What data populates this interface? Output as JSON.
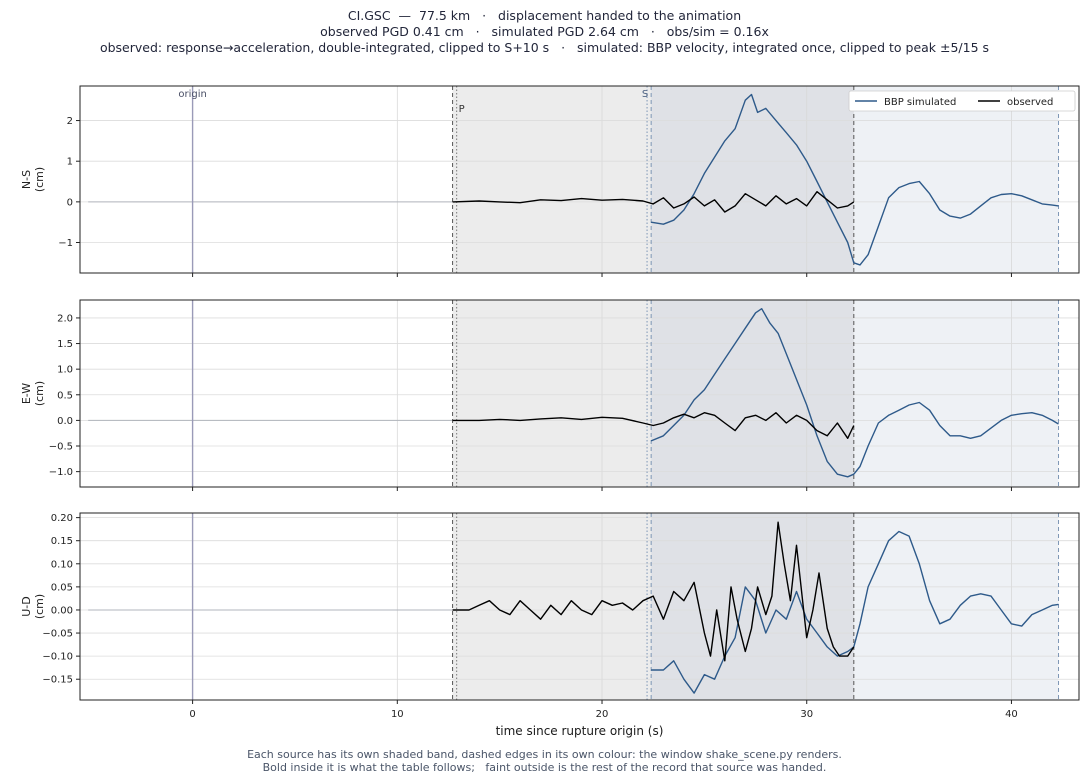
{
  "header": {
    "line1": "CI.GSC  —  77.5 km   ·   displacement handed to the animation",
    "line2": "observed PGD 0.41 cm   ·   simulated PGD 2.64 cm   ·   obs/sim = 0.16x",
    "line3": "observed: response→acceleration, double-integrated, clipped to S+10 s   ·   simulated: BBP velocity, integrated once, clipped to peak ±5/15 s"
  },
  "footer": {
    "line1": "Each source has its own shaded band, dashed edges in its own colour: the window shake_scene.py renders.",
    "line2": "Bold inside it is what the table follows;   faint outside is the rest of the record that source was handed."
  },
  "colors": {
    "simulated": "#2e5a8a",
    "observed": "#000000",
    "faint": "#b0b4bc",
    "origin_line": "#9a9ab8",
    "obs_band": "#ececec",
    "overlap_band": "#dfe1e6",
    "sim_band": "#eef1f5",
    "obs_edge": "#555555",
    "sim_edge": "#7d95b5"
  },
  "chart_data": {
    "type": "line",
    "xlabel": "time since rupture origin (s)",
    "xlim": [
      -5.5,
      43.3
    ],
    "xticks": [
      0,
      10,
      20,
      30,
      40
    ],
    "markers": {
      "origin": 0,
      "P": 12.9,
      "S": 22.2
    },
    "marker_labels": {
      "origin": "origin",
      "P": "P",
      "S": "S"
    },
    "windows": {
      "observed": [
        12.7,
        32.3
      ],
      "simulated": [
        22.4,
        42.3
      ]
    },
    "legend": {
      "position": "top-right",
      "entries": [
        "BBP simulated",
        "observed"
      ]
    },
    "panels": [
      {
        "ylabel": "N-S\n(cm)",
        "ylim": [
          -1.75,
          2.85
        ],
        "yticks": [
          -1,
          0,
          1,
          2
        ],
        "ytick_labels": [
          "−1",
          "0",
          "1",
          "2"
        ],
        "series": [
          {
            "name": "BBP simulated",
            "x": [
              22.4,
              23.0,
              23.5,
              24.0,
              24.5,
              25.0,
              25.5,
              26.0,
              26.5,
              27.0,
              27.3,
              27.6,
              28.0,
              28.5,
              29.0,
              29.5,
              30.0,
              30.5,
              31.0,
              31.5,
              32.0,
              32.3,
              32.6,
              33.0,
              33.5,
              34.0,
              34.5,
              35.0,
              35.5,
              36.0,
              36.5,
              37.0,
              37.5,
              38.0,
              38.5,
              39.0,
              39.5,
              40.0,
              40.5,
              41.0,
              41.5,
              42.0,
              42.3
            ],
            "y": [
              -0.5,
              -0.55,
              -0.45,
              -0.2,
              0.2,
              0.7,
              1.1,
              1.5,
              1.8,
              2.5,
              2.64,
              2.2,
              2.3,
              2.0,
              1.7,
              1.4,
              1.0,
              0.5,
              0.0,
              -0.5,
              -1.0,
              -1.5,
              -1.55,
              -1.3,
              -0.6,
              0.1,
              0.35,
              0.45,
              0.5,
              0.2,
              -0.2,
              -0.35,
              -0.4,
              -0.3,
              -0.1,
              0.1,
              0.18,
              0.2,
              0.15,
              0.05,
              -0.05,
              -0.08,
              -0.1
            ]
          },
          {
            "name": "observed",
            "x": [
              12.7,
              14.0,
              15.0,
              16.0,
              17.0,
              18.0,
              19.0,
              20.0,
              21.0,
              22.0,
              22.5,
              23.0,
              23.5,
              24.0,
              24.5,
              25.0,
              25.5,
              26.0,
              26.5,
              27.0,
              27.5,
              28.0,
              28.5,
              29.0,
              29.5,
              30.0,
              30.5,
              31.0,
              31.5,
              32.0,
              32.3
            ],
            "y": [
              0.0,
              0.02,
              0.0,
              -0.02,
              0.05,
              0.03,
              0.08,
              0.04,
              0.06,
              0.02,
              -0.05,
              0.1,
              -0.15,
              -0.05,
              0.12,
              -0.1,
              0.05,
              -0.25,
              -0.1,
              0.2,
              0.05,
              -0.1,
              0.15,
              -0.05,
              0.08,
              -0.1,
              0.25,
              0.05,
              -0.15,
              -0.1,
              0.0
            ]
          }
        ]
      },
      {
        "ylabel": "E-W\n(cm)",
        "ylim": [
          -1.3,
          2.35
        ],
        "yticks": [
          -1.0,
          -0.5,
          0.0,
          0.5,
          1.0,
          1.5,
          2.0
        ],
        "ytick_labels": [
          "−1.0",
          "−0.5",
          "0.0",
          "0.5",
          "1.0",
          "1.5",
          "2.0"
        ],
        "series": [
          {
            "name": "BBP simulated",
            "x": [
              22.4,
              23.0,
              23.5,
              24.0,
              24.5,
              25.0,
              25.5,
              26.0,
              26.5,
              27.0,
              27.5,
              27.8,
              28.2,
              28.6,
              29.0,
              29.5,
              30.0,
              30.5,
              31.0,
              31.5,
              32.0,
              32.3,
              32.6,
              33.0,
              33.5,
              34.0,
              34.5,
              35.0,
              35.5,
              36.0,
              36.5,
              37.0,
              37.5,
              38.0,
              38.5,
              39.0,
              39.5,
              40.0,
              40.5,
              41.0,
              41.5,
              42.0,
              42.3
            ],
            "y": [
              -0.4,
              -0.3,
              -0.1,
              0.1,
              0.4,
              0.6,
              0.9,
              1.2,
              1.5,
              1.8,
              2.1,
              2.18,
              1.9,
              1.7,
              1.3,
              0.8,
              0.3,
              -0.3,
              -0.8,
              -1.05,
              -1.1,
              -1.05,
              -0.9,
              -0.5,
              -0.05,
              0.1,
              0.2,
              0.3,
              0.35,
              0.2,
              -0.1,
              -0.3,
              -0.3,
              -0.35,
              -0.3,
              -0.15,
              0.0,
              0.1,
              0.13,
              0.15,
              0.1,
              0.0,
              -0.07
            ]
          },
          {
            "name": "observed",
            "x": [
              12.7,
              14.0,
              15.0,
              16.0,
              17.0,
              18.0,
              19.0,
              20.0,
              21.0,
              22.0,
              22.5,
              23.0,
              23.5,
              24.0,
              24.5,
              25.0,
              25.5,
              26.0,
              26.5,
              27.0,
              27.5,
              28.0,
              28.5,
              29.0,
              29.5,
              30.0,
              30.5,
              31.0,
              31.5,
              32.0,
              32.3
            ],
            "y": [
              0.0,
              0.0,
              0.02,
              0.0,
              0.03,
              0.05,
              0.02,
              0.06,
              0.04,
              -0.05,
              -0.1,
              -0.05,
              0.05,
              0.12,
              0.05,
              0.15,
              0.1,
              -0.05,
              -0.2,
              0.05,
              0.1,
              0.0,
              0.15,
              -0.05,
              0.1,
              0.0,
              -0.2,
              -0.3,
              -0.05,
              -0.35,
              -0.1
            ]
          }
        ]
      },
      {
        "ylabel": "U-D\n(cm)",
        "ylim": [
          -0.195,
          0.21
        ],
        "yticks": [
          -0.15,
          -0.1,
          -0.05,
          0.0,
          0.05,
          0.1,
          0.15,
          0.2
        ],
        "ytick_labels": [
          "−0.15",
          "−0.10",
          "−0.05",
          "0.00",
          "0.05",
          "0.10",
          "0.15",
          "0.20"
        ],
        "series": [
          {
            "name": "BBP simulated",
            "x": [
              22.4,
              23.0,
              23.5,
              24.0,
              24.5,
              25.0,
              25.5,
              26.0,
              26.5,
              27.0,
              27.5,
              28.0,
              28.5,
              29.0,
              29.5,
              30.0,
              30.5,
              31.0,
              31.5,
              32.0,
              32.3,
              32.6,
              33.0,
              33.5,
              34.0,
              34.5,
              35.0,
              35.5,
              36.0,
              36.5,
              37.0,
              37.5,
              38.0,
              38.5,
              39.0,
              39.5,
              40.0,
              40.5,
              41.0,
              41.5,
              42.0,
              42.3
            ],
            "y": [
              -0.13,
              -0.13,
              -0.11,
              -0.15,
              -0.18,
              -0.14,
              -0.15,
              -0.1,
              -0.06,
              0.05,
              0.02,
              -0.05,
              0.0,
              -0.02,
              0.04,
              -0.02,
              -0.05,
              -0.08,
              -0.1,
              -0.09,
              -0.08,
              -0.03,
              0.05,
              0.1,
              0.15,
              0.17,
              0.16,
              0.1,
              0.02,
              -0.03,
              -0.02,
              0.01,
              0.03,
              0.035,
              0.03,
              0.0,
              -0.03,
              -0.035,
              -0.01,
              0.0,
              0.01,
              0.012
            ]
          },
          {
            "name": "observed",
            "x": [
              12.7,
              13.5,
              14.0,
              14.5,
              15.0,
              15.5,
              16.0,
              16.5,
              17.0,
              17.5,
              18.0,
              18.5,
              19.0,
              19.5,
              20.0,
              20.5,
              21.0,
              21.5,
              22.0,
              22.5,
              23.0,
              23.5,
              24.0,
              24.5,
              25.0,
              25.3,
              25.6,
              26.0,
              26.3,
              26.6,
              27.0,
              27.3,
              27.6,
              28.0,
              28.3,
              28.6,
              28.9,
              29.2,
              29.5,
              29.8,
              30.0,
              30.3,
              30.6,
              31.0,
              31.3,
              31.6,
              32.0,
              32.3
            ],
            "y": [
              0.0,
              0.0,
              0.01,
              0.02,
              0.0,
              -0.01,
              0.02,
              0.0,
              -0.02,
              0.01,
              -0.01,
              0.02,
              0.0,
              -0.01,
              0.02,
              0.01,
              0.015,
              0.0,
              0.02,
              0.03,
              -0.02,
              0.04,
              0.02,
              0.06,
              -0.05,
              -0.1,
              0.0,
              -0.11,
              0.05,
              -0.02,
              -0.09,
              -0.04,
              0.05,
              -0.01,
              0.03,
              0.19,
              0.1,
              0.02,
              0.14,
              0.02,
              -0.06,
              0.0,
              0.08,
              -0.04,
              -0.08,
              -0.1,
              -0.1,
              -0.08
            ]
          }
        ]
      }
    ]
  }
}
